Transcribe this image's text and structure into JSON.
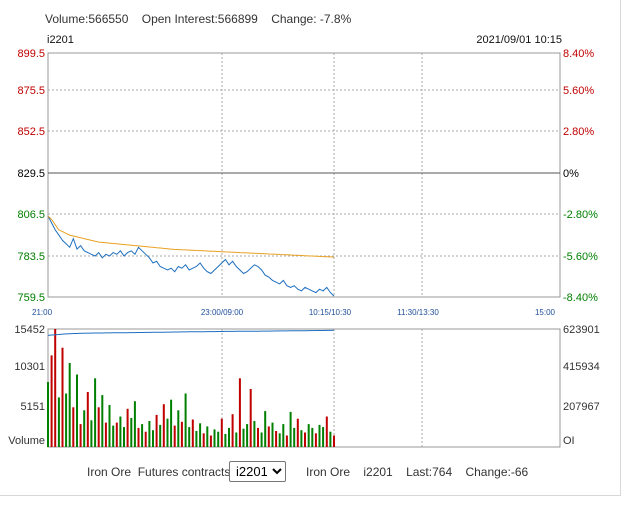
{
  "header": {
    "volume_text": "Volume:566550",
    "open_interest_text": "Open Interest:566899",
    "change_text": "Change: -7.8%",
    "symbol": "i2201",
    "timestamp": "2021/09/01 10:15"
  },
  "footer": {
    "commodity": "Iron Ore",
    "contracts_label": "Futures contracts",
    "selected_contract": "i2201",
    "info_commodity": "Iron Ore",
    "info_symbol": "i2201",
    "last_text": "Last:764",
    "change_text": "Change:-66"
  },
  "colors": {
    "up": "#c00000",
    "down": "#008000",
    "price_line": "#1e6fc0",
    "avg_line": "#e8a020",
    "time_labels": "#1f4e9c"
  },
  "chart_data": [
    {
      "type": "line",
      "title": "",
      "x_tick_labels": [
        "21:00",
        "23:00/09:00",
        "10:15/10:30",
        "11:30/13:30",
        "15:00"
      ],
      "y_ticks": [
        {
          "value": 899.5,
          "label": "899.5",
          "pct": "8.40%"
        },
        {
          "value": 875.5,
          "label": "875.5",
          "pct": "5.60%"
        },
        {
          "value": 852.5,
          "label": "852.5",
          "pct": "2.80%"
        },
        {
          "value": 829.5,
          "label": "829.5",
          "pct": "0%"
        },
        {
          "value": 806.5,
          "label": "806.5",
          "pct": "-2.80%"
        },
        {
          "value": 783.5,
          "label": "783.5",
          "pct": "-5.60%"
        },
        {
          "value": 759.5,
          "label": "759.5",
          "pct": "-8.40%"
        }
      ],
      "ylim": [
        759.5,
        899.5
      ],
      "series": [
        {
          "values": [
            806,
            802,
            798,
            795,
            792,
            790,
            788,
            793,
            787,
            789,
            786,
            785,
            784,
            783,
            785,
            782,
            784,
            783,
            785,
            784,
            786,
            783,
            785,
            786,
            784,
            788,
            786,
            784,
            782,
            779,
            780,
            777,
            776,
            775,
            776,
            774,
            777,
            776,
            778,
            775,
            776,
            777,
            779,
            776,
            774,
            773,
            775,
            777,
            779,
            781,
            778,
            780,
            777,
            775,
            773,
            774,
            776,
            778,
            777,
            775,
            772,
            771,
            769,
            768,
            767,
            769,
            766,
            765,
            766,
            764,
            763,
            765,
            764,
            763,
            762,
            764,
            763,
            765,
            762,
            760
          ]
        },
        {
          "values": [
            806,
            804,
            801,
            798,
            797,
            796,
            795,
            794.5,
            794,
            793.5,
            793,
            792.5,
            792,
            791.5,
            791,
            790.8,
            790.6,
            790.4,
            790.2,
            790,
            789.8,
            789.6,
            789.4,
            789.2,
            789,
            788.8,
            788.6,
            788.4,
            788.2,
            788,
            787.8,
            787.6,
            787.4,
            787.2,
            787,
            786.8,
            786.7,
            786.6,
            786.5,
            786.4,
            786.3,
            786.2,
            786.1,
            786,
            785.9,
            785.8,
            785.7,
            785.6,
            785.5,
            785.4,
            785.3,
            785.2,
            785.1,
            785,
            784.9,
            784.8,
            784.7,
            784.6,
            784.5,
            784.4,
            784.3,
            784.2,
            784.1,
            784,
            783.9,
            783.8,
            783.7,
            783.6,
            783.5,
            783.4,
            783.3,
            783.2,
            783.1,
            783,
            782.9,
            782.8,
            782.7,
            782.6,
            782.5,
            782.4
          ]
        }
      ]
    },
    {
      "type": "bar",
      "title": "",
      "y_tick_labels": [
        "15452",
        "10301",
        "5151",
        "Volume"
      ],
      "y2_tick_labels": [
        "623901",
        "415934",
        "207967",
        "OI"
      ],
      "ylim": [
        0,
        15452
      ],
      "volume": [
        8500,
        12000,
        15452,
        6500,
        13000,
        7000,
        11000,
        5200,
        9500,
        3000,
        4800,
        7200,
        3500,
        9000,
        5200,
        6800,
        3200,
        5500,
        2800,
        3200,
        4000,
        2600,
        5000,
        3800,
        6000,
        2500,
        3000,
        2000,
        3400,
        2200,
        4200,
        2900,
        5600,
        3700,
        6200,
        2800,
        4800,
        3300,
        7000,
        2600,
        3600,
        2100,
        3100,
        1800,
        2700,
        1500,
        2300,
        2000,
        3700,
        1700,
        2500,
        4300,
        1900,
        9000,
        2400,
        3000,
        7600,
        3400,
        2500,
        1900,
        4700,
        2700,
        3200,
        2100,
        1800,
        3000,
        1500,
        4600,
        2500,
        3700,
        2200,
        1900,
        3000,
        2500,
        1800,
        2900,
        2600,
        4000,
        2000,
        1500
      ],
      "up_bars": [
        1,
        2,
        4,
        7,
        9,
        11,
        14,
        16,
        19,
        22,
        25,
        27,
        30,
        32,
        35,
        37,
        40,
        43,
        45,
        48,
        51,
        53,
        56,
        58,
        61,
        63,
        66,
        69,
        71,
        74,
        77,
        79
      ],
      "oi_values": [
        590000,
        592000,
        594000,
        595000,
        597000,
        598000,
        599000,
        600000,
        600000,
        601000,
        601500,
        602000,
        602000,
        602500,
        603000,
        603000,
        603500,
        603500,
        604000,
        604000,
        604000,
        604500,
        604500,
        605000,
        605000,
        605500,
        605500,
        606000,
        606000,
        606500,
        606500,
        607000,
        607000,
        607500,
        607500,
        608000,
        608000,
        608500,
        608500,
        609000,
        609000,
        609000,
        609500,
        609500,
        610000,
        610000,
        610000,
        610500,
        610500,
        611000,
        611000,
        611000,
        611500,
        611500,
        612000,
        612000,
        612000,
        612500,
        612500,
        613000,
        613000,
        613000,
        613500,
        613500,
        614000,
        614000,
        614000,
        614500,
        614500,
        615000,
        615000,
        615000,
        615500,
        615500,
        616000,
        616000,
        616000,
        616500,
        616500,
        617000
      ]
    }
  ]
}
